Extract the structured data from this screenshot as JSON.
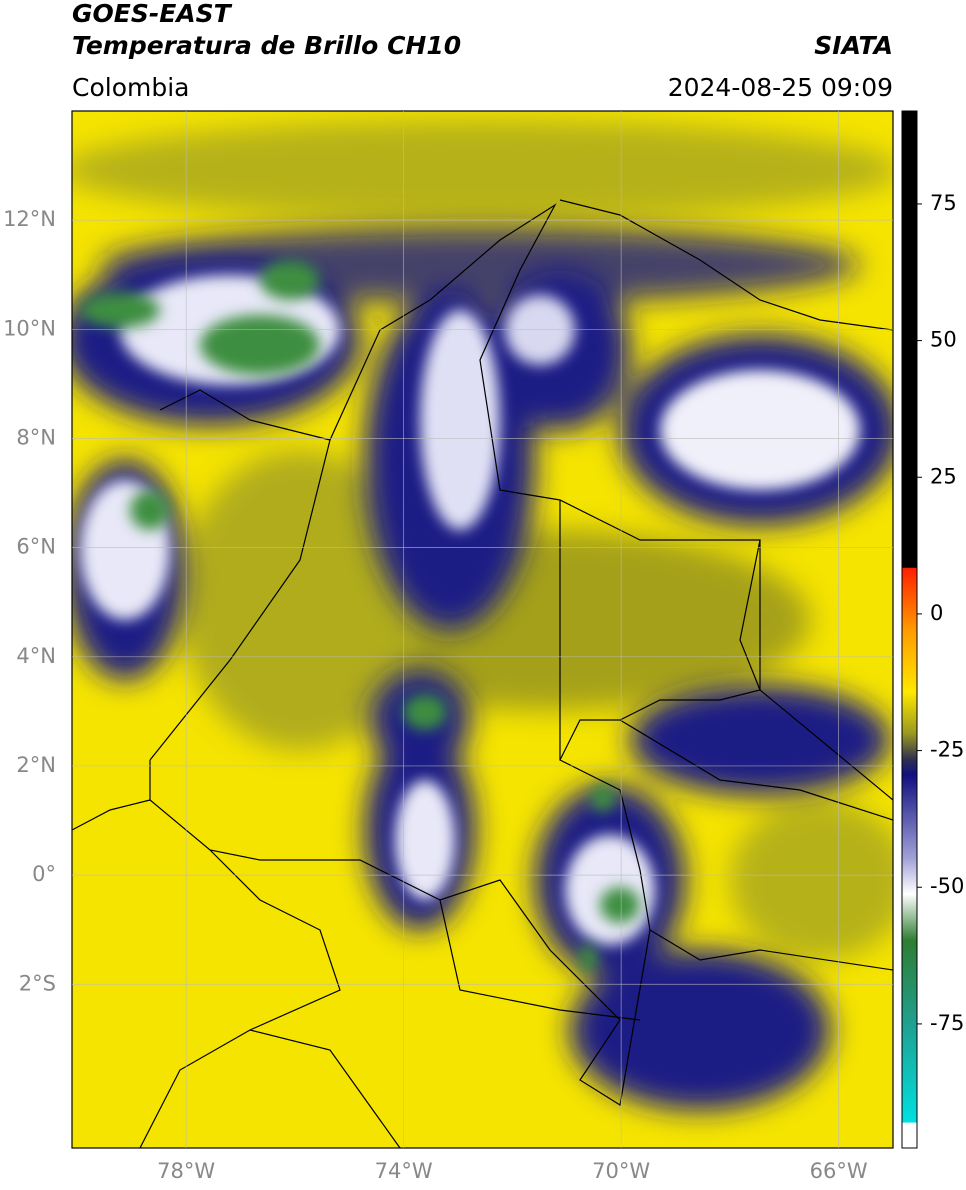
{
  "header": {
    "title": "GOES-EAST",
    "subtitle": "Temperatura de Brillo CH10",
    "source": "SIATA",
    "region": "Colombia",
    "timestamp": "2024-08-25 09:09"
  },
  "map": {
    "xlim": [
      -80.1,
      -65
    ],
    "ylim": [
      -5,
      14
    ],
    "xticks": [
      {
        "value": -78,
        "label": "78°W"
      },
      {
        "value": -74,
        "label": "74°W"
      },
      {
        "value": -70,
        "label": "70°W"
      },
      {
        "value": -66,
        "label": "66°W"
      }
    ],
    "yticks": [
      {
        "value": 12,
        "label": "12°N"
      },
      {
        "value": 10,
        "label": "10°N"
      },
      {
        "value": 8,
        "label": "8°N"
      },
      {
        "value": 6,
        "label": "6°N"
      },
      {
        "value": 4,
        "label": "4°N"
      },
      {
        "value": 2,
        "label": "2°N"
      },
      {
        "value": 0,
        "label": "0°"
      },
      {
        "value": -2,
        "label": "2°S"
      }
    ],
    "grid": true
  },
  "colorbar": {
    "lim": [
      -97.7,
      92
    ],
    "ticks": [
      75,
      50,
      25,
      0,
      -25,
      -50,
      -75
    ]
  }
}
